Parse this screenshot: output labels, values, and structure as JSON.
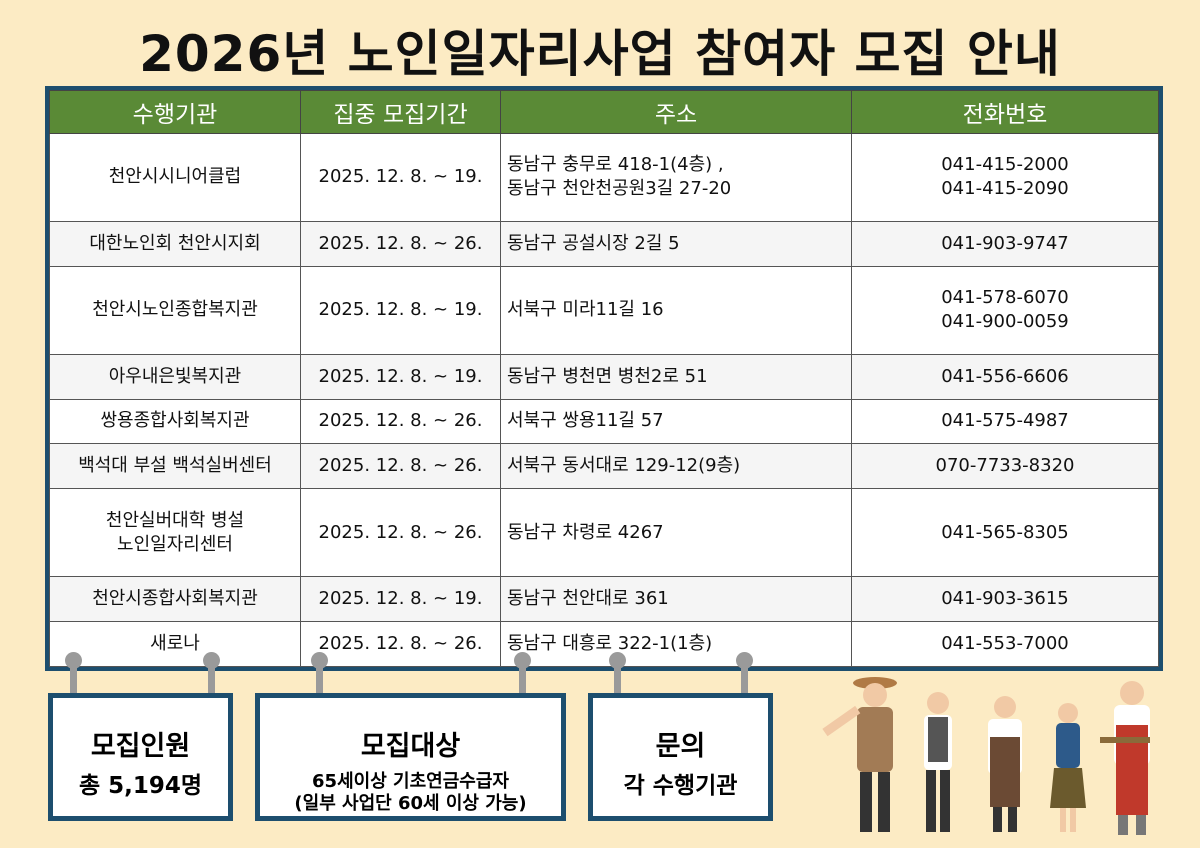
{
  "title": "2026년 노인일자리사업 참여자 모집 안내",
  "colors": {
    "header_green": "#5a8a36",
    "frame_blue": "#1d4e6e",
    "background": "#fcebc4"
  },
  "table": {
    "headers": [
      "수행기관",
      "집중 모집기간",
      "주소",
      "전화번호"
    ],
    "rows": [
      {
        "org": "천안시시니어클럽",
        "period": "2025. 12. 8. ~ 19.",
        "address": "동남구 충무로 418-1(4층) ,\n동남구 천안천공원3길 27-20",
        "phone": "041-415-2000\n041-415-2090"
      },
      {
        "org": "대한노인회 천안시지회",
        "period": "2025. 12. 8. ~ 26.",
        "address": "동남구 공설시장 2길 5",
        "phone": "041-903-9747"
      },
      {
        "org": "천안시노인종합복지관",
        "period": "2025. 12. 8. ~ 19.",
        "address": "서북구 미라11길 16",
        "phone": "041-578-6070\n041-900-0059"
      },
      {
        "org": "아우내은빛복지관",
        "period": "2025. 12. 8. ~ 19.",
        "address": "동남구 병천면 병천2로 51",
        "phone": "041-556-6606"
      },
      {
        "org": "쌍용종합사회복지관",
        "period": "2025. 12. 8. ~ 26.",
        "address": "서북구 쌍용11길 57",
        "phone": "041-575-4987"
      },
      {
        "org": "백석대 부설 백석실버센터",
        "period": "2025. 12. 8. ~ 26.",
        "address": "서북구 동서대로 129-12(9층)",
        "phone": "070-7733-8320"
      },
      {
        "org": "천안실버대학 병설\n노인일자리센터",
        "period": "2025. 12. 8. ~ 26.",
        "address": "동남구 차령로 4267",
        "phone": "041-565-8305"
      },
      {
        "org": "천안시종합사회복지관",
        "period": "2025. 12. 8. ~ 19.",
        "address": "동남구 천안대로 361",
        "phone": "041-903-3615"
      },
      {
        "org": "새로나",
        "period": "2025. 12. 8. ~ 26.",
        "address": "동남구 대흥로 322-1(1층)",
        "phone": "041-553-7000"
      }
    ]
  },
  "cards": [
    {
      "heading": "모집인원",
      "value": "총 5,194명"
    },
    {
      "heading": "모집대상",
      "value": "65세이상 기초연금수급자\n(일부 사업단 60세 이상 가능)"
    },
    {
      "heading": "문의",
      "value": "각 수행기관"
    }
  ]
}
